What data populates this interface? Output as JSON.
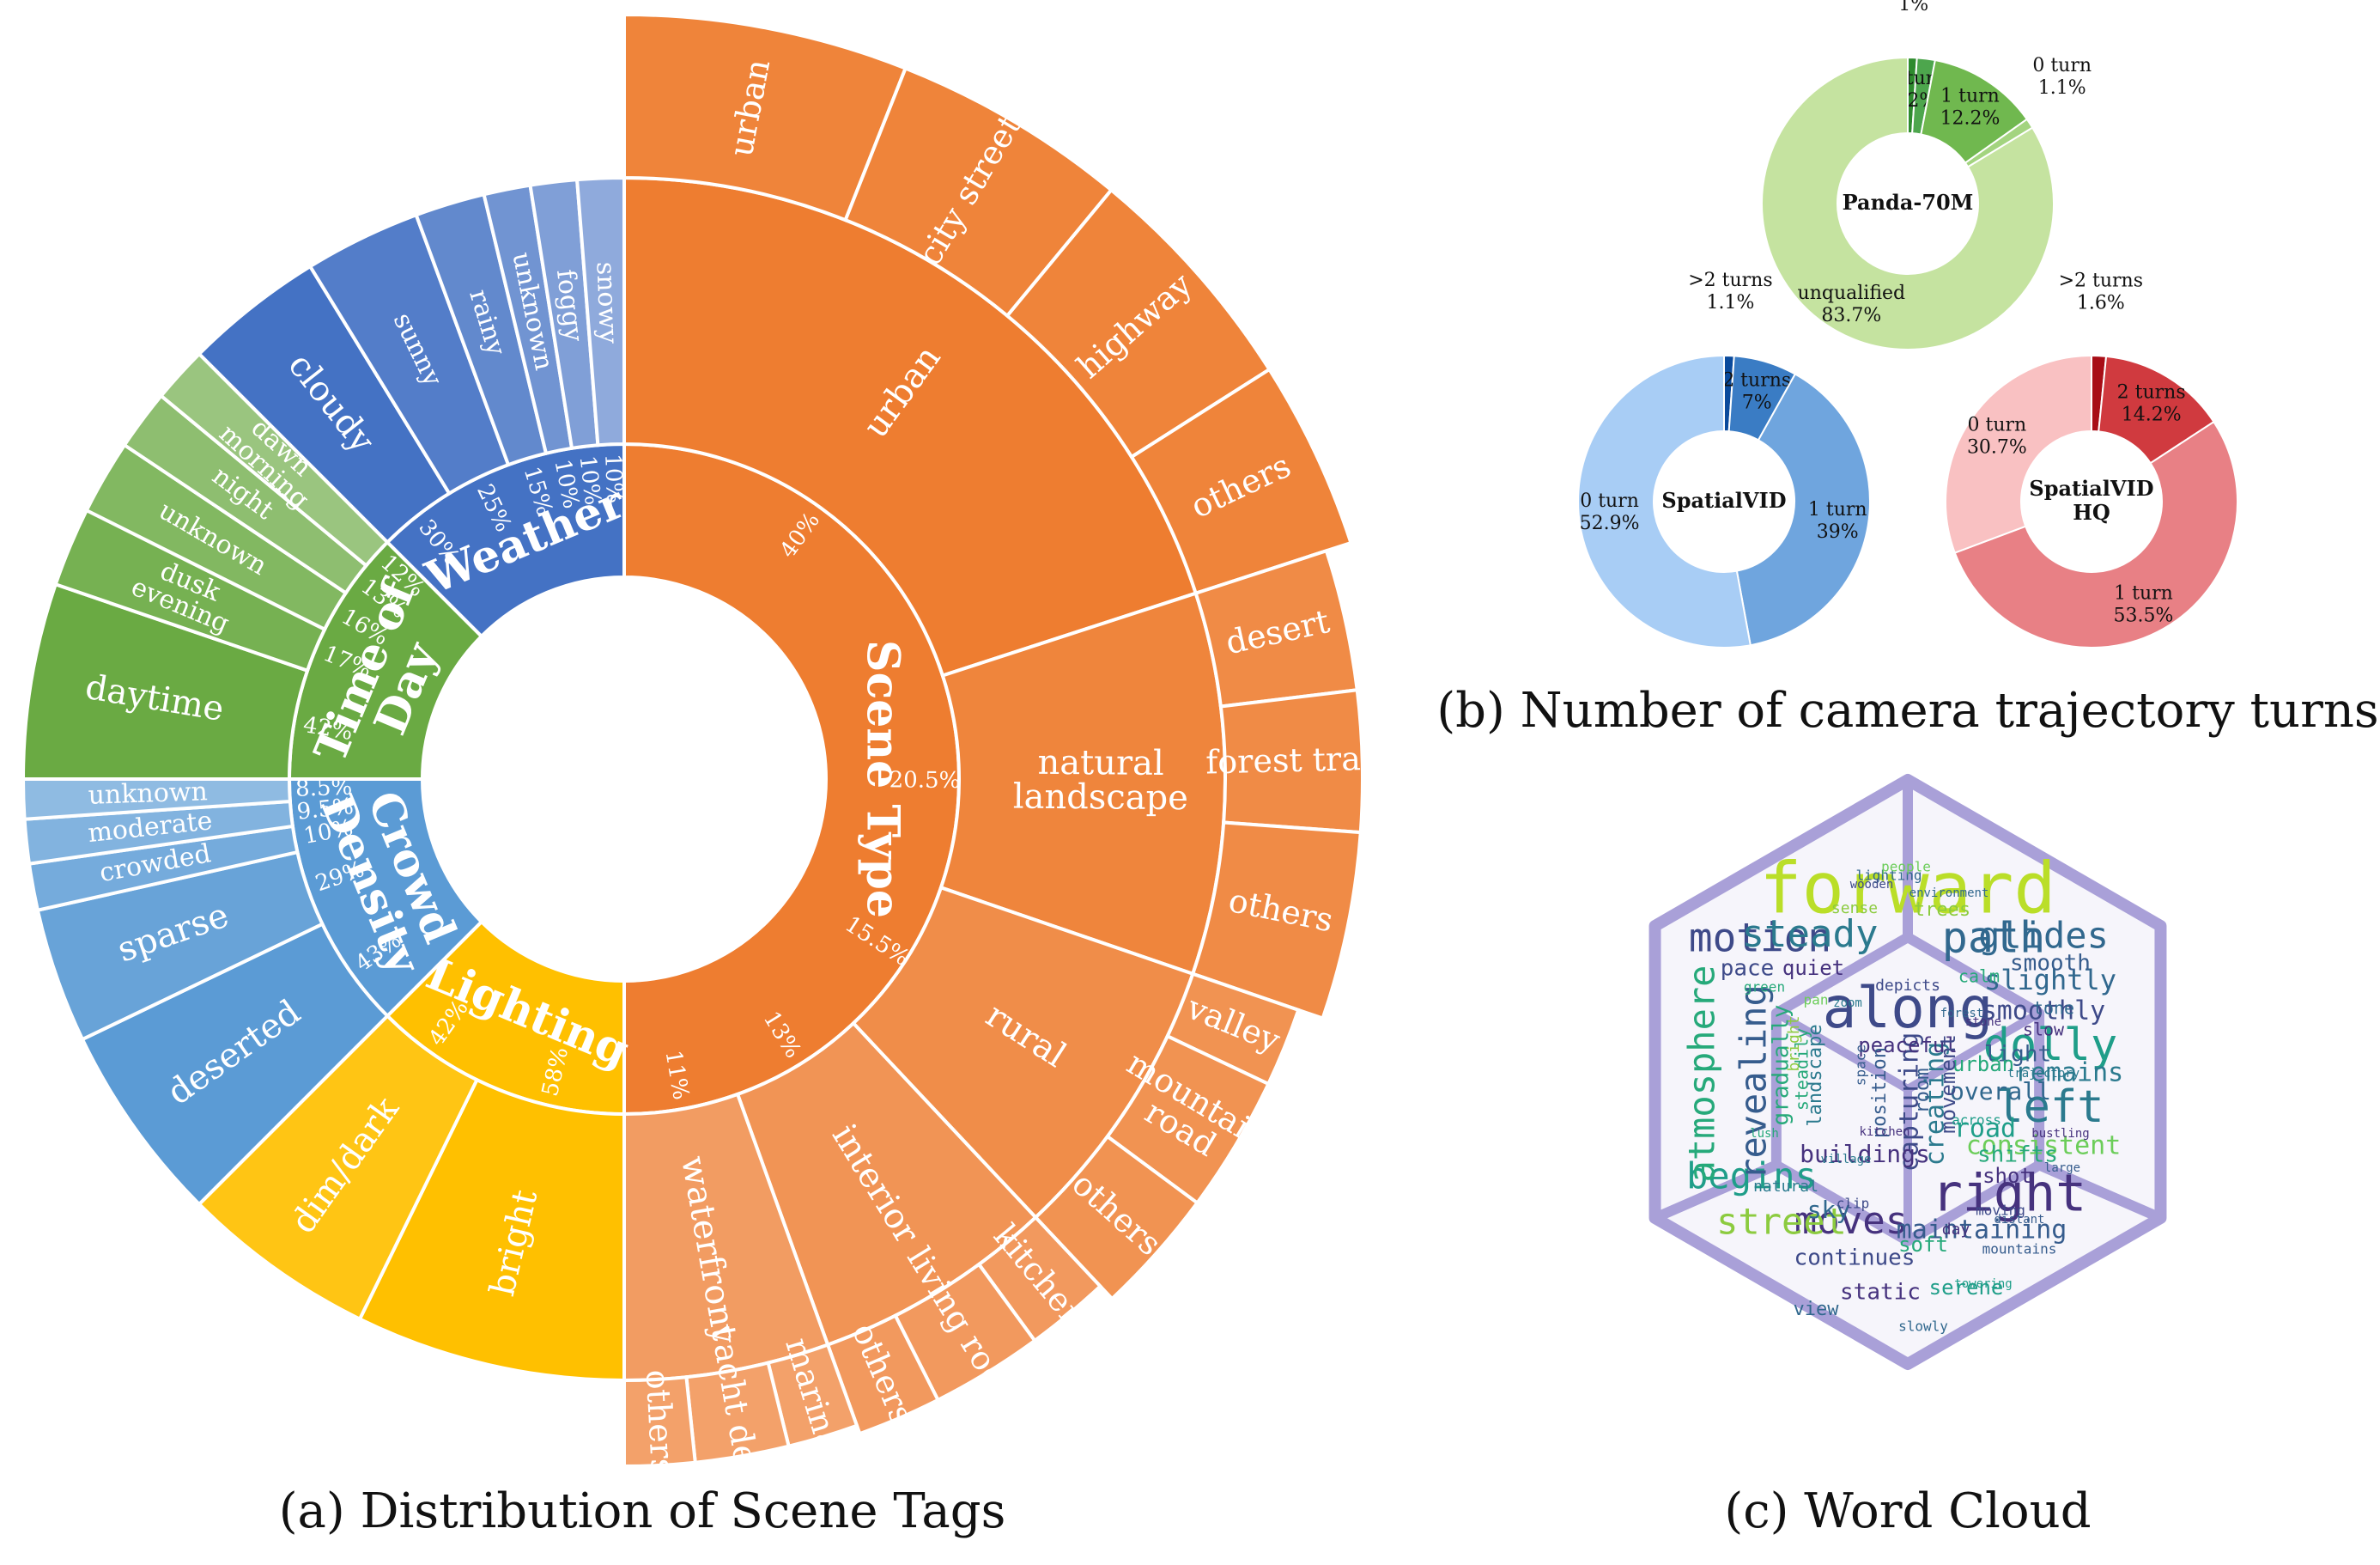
{
  "captions": {
    "a": "(a) Distribution of Scene Tags",
    "b": "(b) Number of camera trajectory turns",
    "c": "(c) Word Cloud"
  },
  "chart_data": [
    {
      "type": "sunburst",
      "colors": {
        "Scene Type": "#EE7D30",
        "Lighting": "#FFC000",
        "Crowd Density": "#5B9BD5",
        "Time of Day": "#6AAA43",
        "Weather": "#4472C4"
      },
      "categories": [
        {
          "name": "Scene Type",
          "share": 0.5,
          "children": [
            {
              "name": "urban",
              "percent": "40%",
              "value": 40,
              "children": [
                {
                  "name": "urban",
                  "value": 30
                },
                {
                  "name": "city street",
                  "value": 25
                },
                {
                  "name": "highway",
                  "value": 25
                },
                {
                  "name": "others",
                  "value": 20
                }
              ]
            },
            {
              "name": "natural landscape",
              "percent": "20.5%",
              "value": 20.5,
              "children": [
                {
                  "name": "desert",
                  "value": 30
                },
                {
                  "name": "forest trail",
                  "value": 30
                },
                {
                  "name": "others",
                  "value": 40
                }
              ]
            },
            {
              "name": "rural",
              "percent": "15.5%",
              "value": 15.5,
              "children": [
                {
                  "name": "valley",
                  "value": 23
                },
                {
                  "name": "mountain road",
                  "value": 40
                },
                {
                  "name": "others",
                  "value": 37
                }
              ]
            },
            {
              "name": "interior",
              "percent": "13%",
              "value": 13,
              "children": [
                {
                  "name": "kitchen",
                  "value": 30
                },
                {
                  "name": "living room",
                  "value": 40
                },
                {
                  "name": "others",
                  "value": 30
                }
              ]
            },
            {
              "name": "waterfront",
              "percent": "11%",
              "value": 11,
              "children": [
                {
                  "name": "marina",
                  "value": 30
                },
                {
                  "name": "yacht deck",
                  "value": 40
                },
                {
                  "name": "others",
                  "value": 30
                }
              ]
            }
          ]
        },
        {
          "name": "Lighting",
          "share": 0.125,
          "children": [
            {
              "name": "bright",
              "percent": "58%",
              "value": 58
            },
            {
              "name": "dim/dark",
              "percent": "42%",
              "value": 42
            }
          ]
        },
        {
          "name": "Crowd Density",
          "share": 0.125,
          "children": [
            {
              "name": "deserted",
              "percent": "43%",
              "value": 43
            },
            {
              "name": "sparse",
              "percent": "29%",
              "value": 29
            },
            {
              "name": "crowded",
              "percent": "10%",
              "value": 10
            },
            {
              "name": "moderate",
              "percent": "9.5%",
              "value": 9.5
            },
            {
              "name": "unknown",
              "percent": "8.5%",
              "value": 8.5
            }
          ]
        },
        {
          "name": "Time of Day",
          "share": 0.125,
          "children": [
            {
              "name": "daytime",
              "percent": "42%",
              "value": 42
            },
            {
              "name": "dusk evening",
              "percent": "17%",
              "value": 17
            },
            {
              "name": "unknown",
              "percent": "16%",
              "value": 16
            },
            {
              "name": "night",
              "percent": "13%",
              "value": 13
            },
            {
              "name": "dawn morning",
              "percent": "12%",
              "value": 12
            }
          ]
        },
        {
          "name": "Weather",
          "share": 0.125,
          "children": [
            {
              "name": "cloudy",
              "percent": "30%",
              "value": 30
            },
            {
              "name": "sunny",
              "percent": "25%",
              "value": 25
            },
            {
              "name": "rainy",
              "percent": "15%",
              "value": 15
            },
            {
              "name": "unknown",
              "percent": "10%",
              "value": 10
            },
            {
              "name": "foggy",
              "percent": "10%",
              "value": 10
            },
            {
              "name": "snowy",
              "percent": "10%",
              "value": 10
            }
          ]
        }
      ]
    },
    {
      "type": "pie",
      "donut": true,
      "title": "Panda-70M",
      "slices": [
        {
          "label": ">2 turns",
          "percent": "1%",
          "value": 1,
          "color": "#2E8B2E"
        },
        {
          "label": "2 turns",
          "percent": "2%",
          "value": 2,
          "color": "#4DA64D"
        },
        {
          "label": "1 turn",
          "percent": "12.2%",
          "value": 12.2,
          "color": "#70B84F"
        },
        {
          "label": "0 turn",
          "percent": "1.1%",
          "value": 1.1,
          "color": "#A3D47F"
        },
        {
          "label": "unqualified",
          "percent": "83.7%",
          "value": 83.7,
          "color": "#C5E3A0"
        }
      ]
    },
    {
      "type": "pie",
      "donut": true,
      "title": "SpatialVID",
      "slices": [
        {
          "label": ">2 turns",
          "percent": "1.1%",
          "value": 1.1,
          "color": "#0A4A9C"
        },
        {
          "label": "2 turns",
          "percent": "7%",
          "value": 7,
          "color": "#3A7CC4"
        },
        {
          "label": "1 turn",
          "percent": "39%",
          "value": 39,
          "color": "#6FA5DE"
        },
        {
          "label": "0 turn",
          "percent": "52.9%",
          "value": 52.9,
          "color": "#A8CDF5"
        }
      ]
    },
    {
      "type": "pie",
      "donut": true,
      "title": "SpatialVID HQ",
      "slices": [
        {
          "label": ">2 turns",
          "percent": "1.6%",
          "value": 1.6,
          "color": "#A80D16"
        },
        {
          "label": "2 turns",
          "percent": "14.2%",
          "value": 14.2,
          "color": "#D03A3F"
        },
        {
          "label": "1 turn",
          "percent": "53.5%",
          "value": 53.5,
          "color": "#E88085"
        },
        {
          "label": "0 turn",
          "percent": "30.7%",
          "value": 30.7,
          "color": "#F9C1C2"
        }
      ]
    }
  ],
  "wordcloud": {
    "outline_color": "#A9A0D8",
    "palette": [
      "#2B7A8E",
      "#3E4A89",
      "#26A97A",
      "#8CCB3F",
      "#BADE28",
      "#31688E",
      "#46327E",
      "#1F9E89",
      "#6CCD5A",
      "#365C8D"
    ],
    "words": [
      {
        "text": "forward",
        "size": 82,
        "color": "#BADE28"
      },
      {
        "text": "along",
        "size": 66,
        "color": "#3E4A89"
      },
      {
        "text": "right",
        "size": 60,
        "color": "#46327E"
      },
      {
        "text": "left",
        "size": 52,
        "color": "#2B7A8E"
      },
      {
        "text": "dolly",
        "size": 52,
        "color": "#1F9E89"
      },
      {
        "text": "path",
        "size": 50,
        "color": "#31688E"
      },
      {
        "text": "motion",
        "size": 46,
        "color": "#3E4A89"
      },
      {
        "text": "steady",
        "size": 44,
        "color": "#2B7A8E"
      },
      {
        "text": "glides",
        "size": 42,
        "color": "#31688E"
      },
      {
        "text": "moves",
        "size": 44,
        "color": "#46327E"
      },
      {
        "text": "begins",
        "size": 42,
        "color": "#1F9E89"
      },
      {
        "text": "street",
        "size": 42,
        "color": "#8CCB3F"
      },
      {
        "text": "atmosphere",
        "size": 42,
        "color": "#26A97A"
      },
      {
        "text": "revealing",
        "size": 42,
        "color": "#365C8D"
      },
      {
        "text": "capturing",
        "size": 30,
        "color": "#3E4A89"
      },
      {
        "text": "creating",
        "size": 30,
        "color": "#2B7A8E"
      },
      {
        "text": "slightly",
        "size": 32,
        "color": "#31688E"
      },
      {
        "text": "smoothly",
        "size": 30,
        "color": "#3E4A89"
      },
      {
        "text": "consistent",
        "size": 30,
        "color": "#6CCD5A"
      },
      {
        "text": "maintaining",
        "size": 30,
        "color": "#365C8D"
      },
      {
        "text": "remains",
        "size": 30,
        "color": "#2B7A8E"
      },
      {
        "text": "buildings",
        "size": 28,
        "color": "#46327E"
      },
      {
        "text": "overall",
        "size": 28,
        "color": "#31688E"
      },
      {
        "text": "smooth",
        "size": 26,
        "color": "#365C8D"
      },
      {
        "text": "peaceful",
        "size": 24,
        "color": "#46327E"
      },
      {
        "text": "continues",
        "size": 26,
        "color": "#3E4A89"
      },
      {
        "text": "static",
        "size": 26,
        "color": "#46327E"
      },
      {
        "text": "serene",
        "size": 24,
        "color": "#1F9E89"
      },
      {
        "text": "shifts",
        "size": 26,
        "color": "#26A97A"
      },
      {
        "text": "road",
        "size": 30,
        "color": "#1F9E89"
      },
      {
        "text": "sky",
        "size": 28,
        "color": "#31688E"
      },
      {
        "text": "pace",
        "size": 26,
        "color": "#3E4A89"
      },
      {
        "text": "quiet",
        "size": 24,
        "color": "#46327E"
      },
      {
        "text": "light",
        "size": 26,
        "color": "#365C8D"
      },
      {
        "text": "shot",
        "size": 24,
        "color": "#46327E"
      },
      {
        "text": "soft",
        "size": 24,
        "color": "#26A97A"
      },
      {
        "text": "urban",
        "size": 24,
        "color": "#26A97A"
      },
      {
        "text": "view",
        "size": 22,
        "color": "#31688E"
      },
      {
        "text": "movement",
        "size": 24,
        "color": "#3E4A89"
      },
      {
        "text": "position",
        "size": 22,
        "color": "#365C8D"
      },
      {
        "text": "gradually",
        "size": 26,
        "color": "#26A97A"
      },
      {
        "text": "trees",
        "size": 22,
        "color": "#8CCB3F"
      },
      {
        "text": "landscape",
        "size": 22,
        "color": "#2B7A8E"
      },
      {
        "text": "room",
        "size": 22,
        "color": "#365C8D"
      },
      {
        "text": "steadily",
        "size": 20,
        "color": "#26A97A"
      },
      {
        "text": "tone",
        "size": 20,
        "color": "#31688E"
      },
      {
        "text": "slow",
        "size": 20,
        "color": "#46327E"
      },
      {
        "text": "calm",
        "size": 20,
        "color": "#26A97A"
      },
      {
        "text": "depicts",
        "size": 18,
        "color": "#3E4A89"
      },
      {
        "text": "sense",
        "size": 18,
        "color": "#8CCB3F"
      },
      {
        "text": "natural",
        "size": 18,
        "color": "#2B7A8E"
      },
      {
        "text": "mountains",
        "size": 16,
        "color": "#365C8D"
      },
      {
        "text": "slowly",
        "size": 16,
        "color": "#31688E"
      },
      {
        "text": "clip",
        "size": 16,
        "color": "#3E4A89"
      },
      {
        "text": "day",
        "size": 18,
        "color": "#46327E"
      },
      {
        "text": "lighting",
        "size": 16,
        "color": "#31688E"
      },
      {
        "text": "green",
        "size": 16,
        "color": "#26A97A"
      },
      {
        "text": "bright",
        "size": 18,
        "color": "#8CCB3F"
      },
      {
        "text": "people",
        "size": 16,
        "color": "#6CCD5A"
      },
      {
        "text": "moving",
        "size": 16,
        "color": "#3E4A89"
      },
      {
        "text": "trajectory",
        "size": 14,
        "color": "#2B7A8E"
      },
      {
        "text": "kitchen",
        "size": 14,
        "color": "#46327E"
      },
      {
        "text": "environment",
        "size": 14,
        "color": "#31688E"
      },
      {
        "text": "space",
        "size": 16,
        "color": "#365C8D"
      },
      {
        "text": "across",
        "size": 16,
        "color": "#1F9E89"
      },
      {
        "text": "bustling",
        "size": 14,
        "color": "#46327E"
      },
      {
        "text": "distant",
        "size": 14,
        "color": "#365C8D"
      },
      {
        "text": "wooden",
        "size": 14,
        "color": "#3E4A89"
      },
      {
        "text": "village",
        "size": 14,
        "color": "#2B7A8E"
      },
      {
        "text": "forest",
        "size": 14,
        "color": "#31688E"
      },
      {
        "text": "towering",
        "size": 14,
        "color": "#1F9E89"
      },
      {
        "text": "large",
        "size": 14,
        "color": "#365C8D"
      },
      {
        "text": "pan",
        "size": 16,
        "color": "#6CCD5A"
      },
      {
        "text": "stone",
        "size": 14,
        "color": "#46327E"
      },
      {
        "text": "zoom",
        "size": 14,
        "color": "#2B7A8E"
      },
      {
        "text": "lush",
        "size": 14,
        "color": "#26A97A"
      }
    ]
  }
}
